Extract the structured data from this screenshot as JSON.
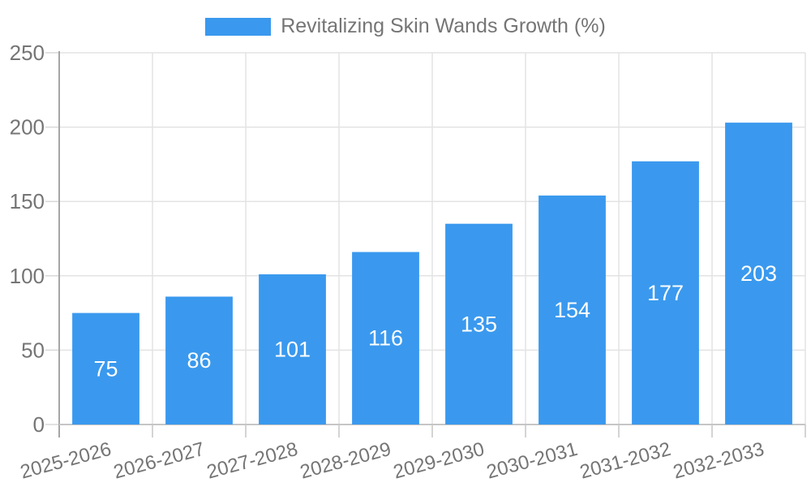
{
  "legend": {
    "label": "Revitalizing Skin Wands Growth (%)"
  },
  "chart_data": {
    "type": "bar",
    "title": "Revitalizing Skin Wands Growth (%)",
    "categories": [
      "2025-2026",
      "2026-2027",
      "2027-2028",
      "2028-2029",
      "2029-2030",
      "2030-2031",
      "2031-2032",
      "2032-2033"
    ],
    "values": [
      75,
      86,
      101,
      116,
      135,
      154,
      177,
      203
    ],
    "xlabel": "",
    "ylabel": "",
    "ylim": [
      0,
      250
    ],
    "yticks": [
      0,
      50,
      100,
      150,
      200,
      250
    ],
    "grid": true,
    "legend_position": "top",
    "bar_color": "#3a99ee",
    "value_label_color": "#ffffff",
    "text_color": "#757575",
    "grid_color": "#e3e3e3",
    "tick_color": "#d9d9d9",
    "axis_color": "#a6a6a6",
    "baseline_color": "#c6c6c6"
  }
}
